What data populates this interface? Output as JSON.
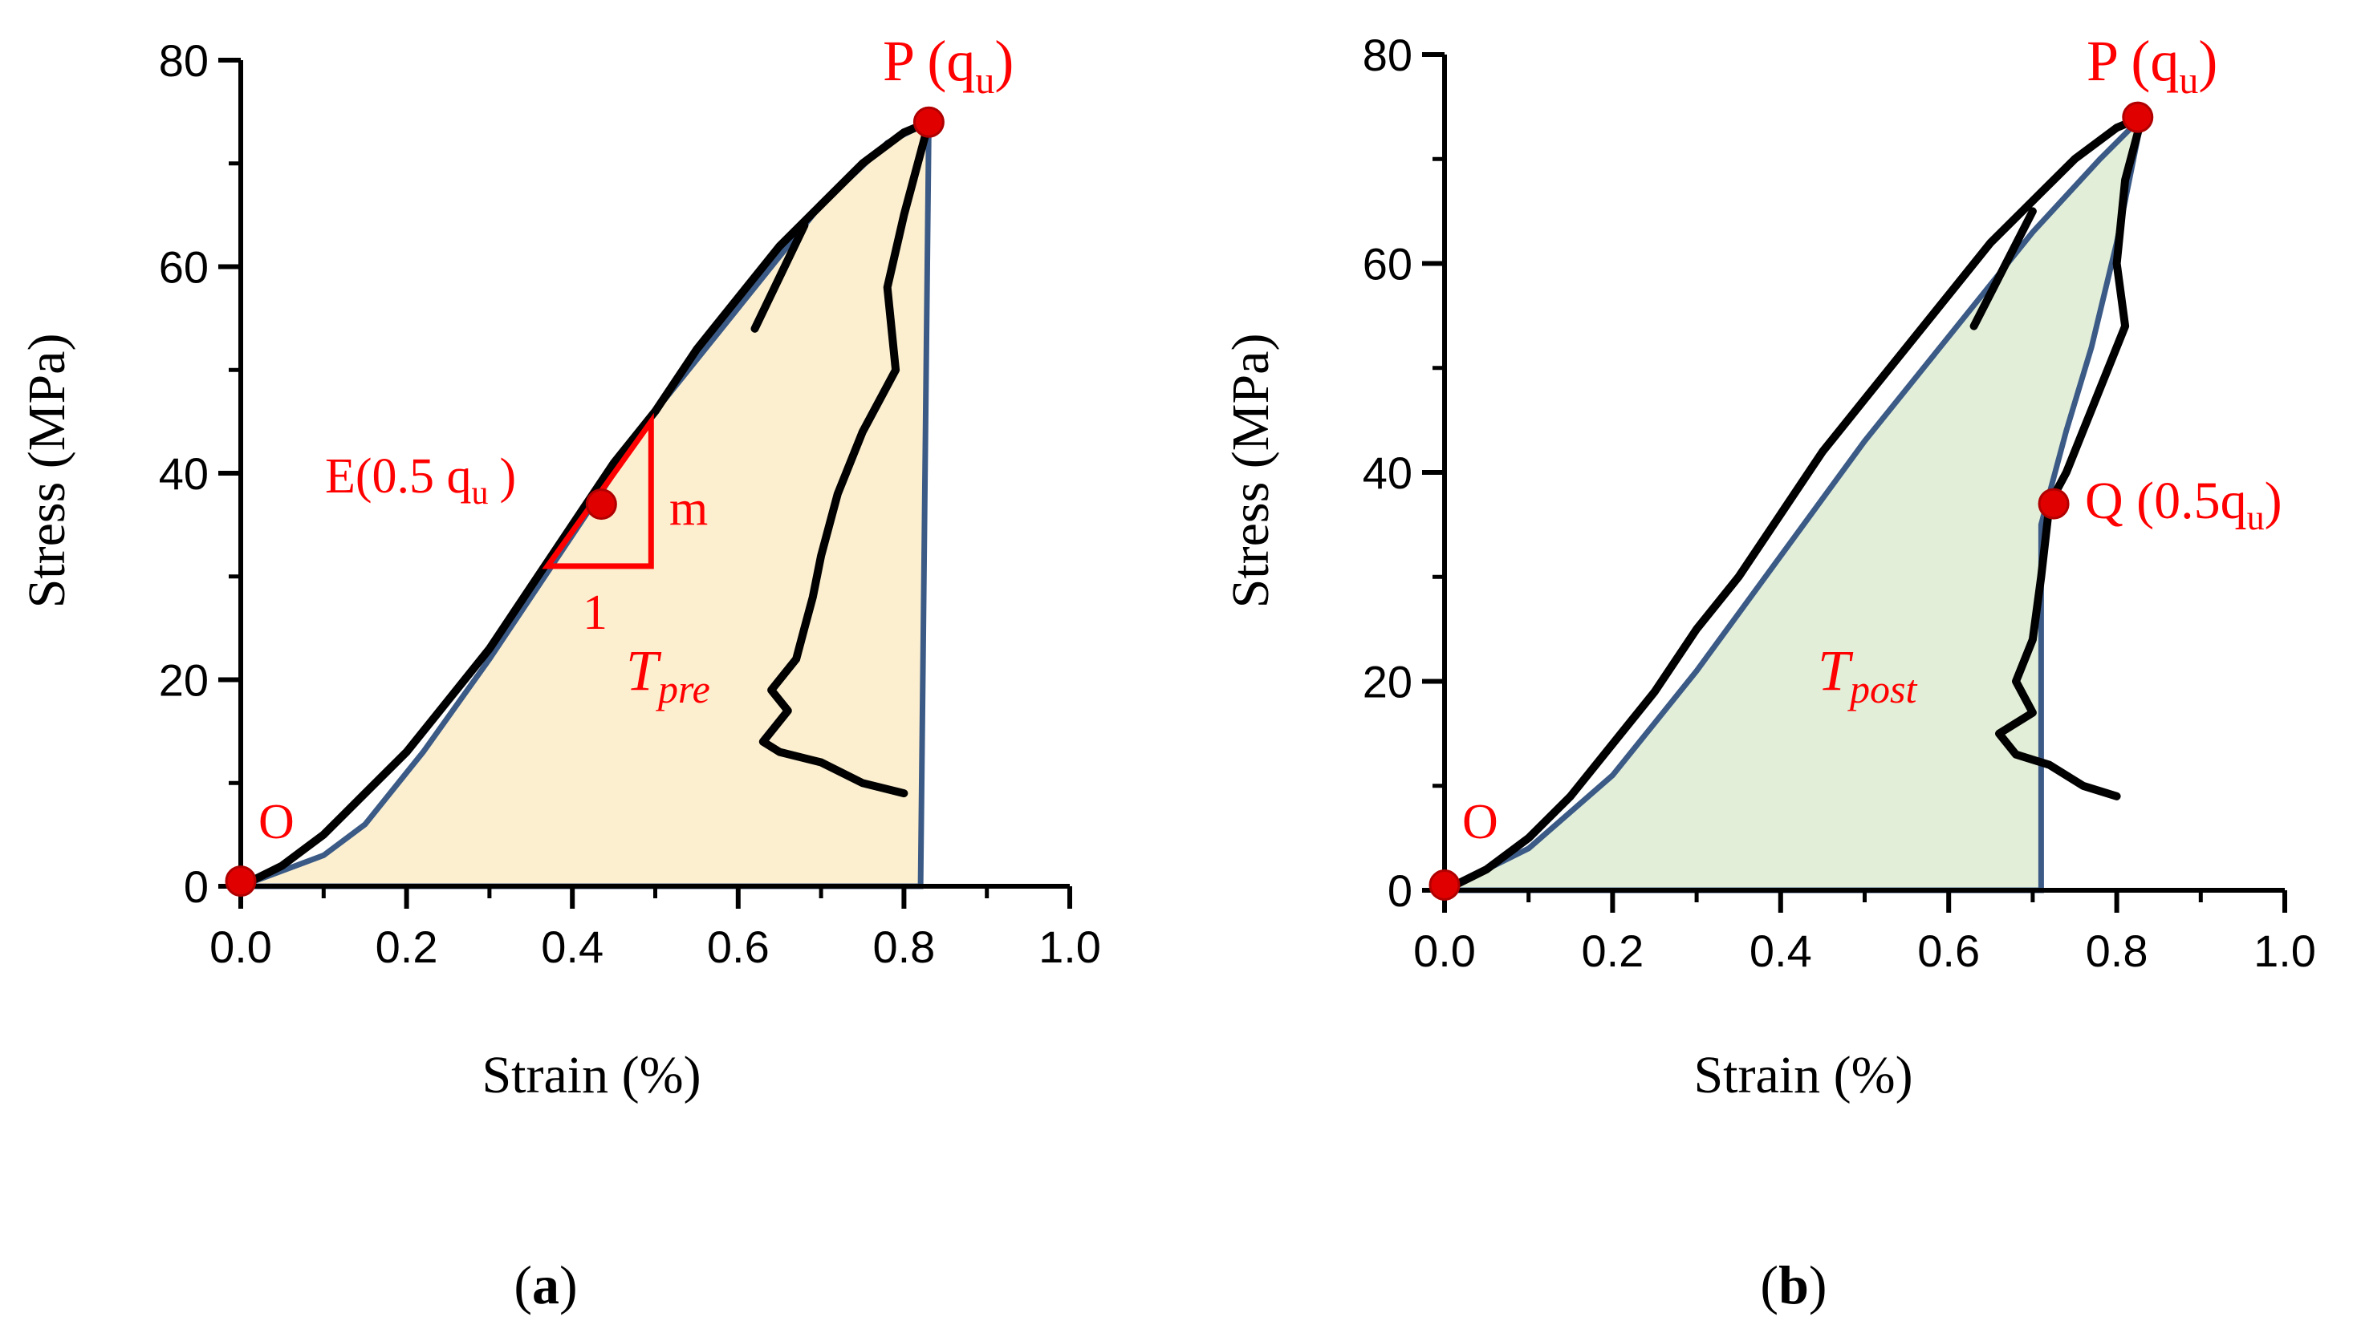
{
  "chart_data": [
    {
      "type": "line",
      "panel_label": "(a)",
      "panel_letter": "a",
      "xlabel": "Strain (%)",
      "ylabel": "Stress (MPa)",
      "xlim": [
        0.0,
        1.0
      ],
      "ylim": [
        0,
        80
      ],
      "xticks": [
        "0.0",
        "0.2",
        "0.4",
        "0.6",
        "0.8",
        "1.0"
      ],
      "yticks": [
        "0",
        "20",
        "40",
        "60",
        "80"
      ],
      "fill_color": "#fcefd0",
      "envelope_color": "#3b5a86",
      "curve_color": "#000000",
      "marker_color": "#e00000",
      "envelope": {
        "name": "T_pre region boundary",
        "x": [
          0.0,
          0.1,
          0.15,
          0.22,
          0.3,
          0.4,
          0.5,
          0.6,
          0.7,
          0.78,
          0.83,
          0.82,
          0.0
        ],
        "y": [
          0,
          3,
          6,
          13,
          22,
          34,
          46,
          56,
          66,
          72,
          74,
          0,
          0
        ]
      },
      "curve_pre": {
        "name": "stress-strain (pre-peak)",
        "x": [
          0.0,
          0.05,
          0.1,
          0.15,
          0.2,
          0.25,
          0.3,
          0.35,
          0.4,
          0.45,
          0.5,
          0.55,
          0.6,
          0.65,
          0.7,
          0.75,
          0.8,
          0.83
        ],
        "y": [
          0,
          2,
          5,
          9,
          13,
          18,
          23,
          29,
          35,
          41,
          46,
          52,
          57,
          62,
          66,
          70,
          73,
          74
        ]
      },
      "curve_post": {
        "name": "stress-strain (post-peak)",
        "x": [
          0.83,
          0.8,
          0.78,
          0.79,
          0.75,
          0.72,
          0.7,
          0.69,
          0.68,
          0.67,
          0.64,
          0.66,
          0.63,
          0.65,
          0.7,
          0.75,
          0.8
        ],
        "y": [
          74,
          65,
          58,
          50,
          44,
          38,
          32,
          28,
          25,
          22,
          19,
          17,
          14,
          13,
          12,
          10,
          9
        ]
      },
      "side_branch": {
        "x": [
          0.68,
          0.62
        ],
        "y": [
          64,
          54
        ]
      },
      "points": [
        {
          "label": "O",
          "x": 0.0,
          "y": 0.5
        },
        {
          "label": "E",
          "x": 0.435,
          "y": 37
        },
        {
          "label": "P",
          "x": 0.83,
          "y": 74
        }
      ],
      "tangent_triangle": {
        "x": [
          0.37,
          0.495,
          0.495
        ],
        "y": [
          31,
          45,
          31
        ]
      },
      "annotations": {
        "O": "O",
        "E_prefix": "E(0.5 q",
        "E_sub": "u",
        "E_suffix": ")",
        "P_prefix": "P (q",
        "P_sub": "u",
        "P_suffix": ")",
        "m": "m",
        "one": "1",
        "T_main": "T",
        "T_sub": "pre"
      }
    },
    {
      "type": "line",
      "panel_label": "(b)",
      "panel_letter": "b",
      "xlabel": "Strain (%)",
      "ylabel": "Stress (MPa)",
      "xlim": [
        0.0,
        1.0
      ],
      "ylim": [
        0,
        80
      ],
      "xticks": [
        "0.0",
        "0.2",
        "0.4",
        "0.6",
        "0.8",
        "1.0"
      ],
      "yticks": [
        "0",
        "20",
        "40",
        "60",
        "80"
      ],
      "fill_color": "#e2eed8",
      "envelope_color": "#3b5a86",
      "curve_color": "#000000",
      "marker_color": "#e00000",
      "envelope": {
        "name": "T_post region boundary",
        "x": [
          0.0,
          0.1,
          0.2,
          0.3,
          0.4,
          0.5,
          0.6,
          0.7,
          0.78,
          0.83,
          0.8,
          0.77,
          0.74,
          0.72,
          0.71,
          0.71,
          0.0
        ],
        "y": [
          0,
          4,
          11,
          21,
          32,
          43,
          53,
          63,
          70,
          74,
          62,
          52,
          44,
          38,
          35,
          0,
          0
        ]
      },
      "curve_pre": {
        "name": "stress-strain (pre-peak)",
        "x": [
          0.0,
          0.05,
          0.1,
          0.15,
          0.2,
          0.25,
          0.3,
          0.35,
          0.4,
          0.45,
          0.5,
          0.55,
          0.6,
          0.65,
          0.7,
          0.75,
          0.8,
          0.83
        ],
        "y": [
          0,
          2,
          5,
          9,
          14,
          19,
          25,
          30,
          36,
          42,
          47,
          52,
          57,
          62,
          66,
          70,
          73,
          74
        ]
      },
      "curve_post": {
        "name": "stress-strain (post-peak)",
        "x": [
          0.83,
          0.81,
          0.8,
          0.81,
          0.78,
          0.76,
          0.74,
          0.72,
          0.71,
          0.7,
          0.68,
          0.7,
          0.66,
          0.68,
          0.72,
          0.76,
          0.8
        ],
        "y": [
          74,
          68,
          60,
          54,
          48,
          44,
          40,
          37,
          30,
          24,
          20,
          17,
          15,
          13,
          12,
          10,
          9
        ]
      },
      "side_branch": {
        "x": [
          0.7,
          0.63
        ],
        "y": [
          65,
          54
        ]
      },
      "points": [
        {
          "label": "O",
          "x": 0.0,
          "y": 0.5
        },
        {
          "label": "Q",
          "x": 0.725,
          "y": 37
        },
        {
          "label": "P",
          "x": 0.825,
          "y": 74
        }
      ],
      "annotations": {
        "O": "O",
        "Q_prefix": "Q (0.5q",
        "Q_sub": "u",
        "Q_suffix": ")",
        "P_prefix": "P (q",
        "P_sub": "u",
        "P_suffix": ")",
        "T_main": "T",
        "T_sub": "post"
      }
    }
  ]
}
